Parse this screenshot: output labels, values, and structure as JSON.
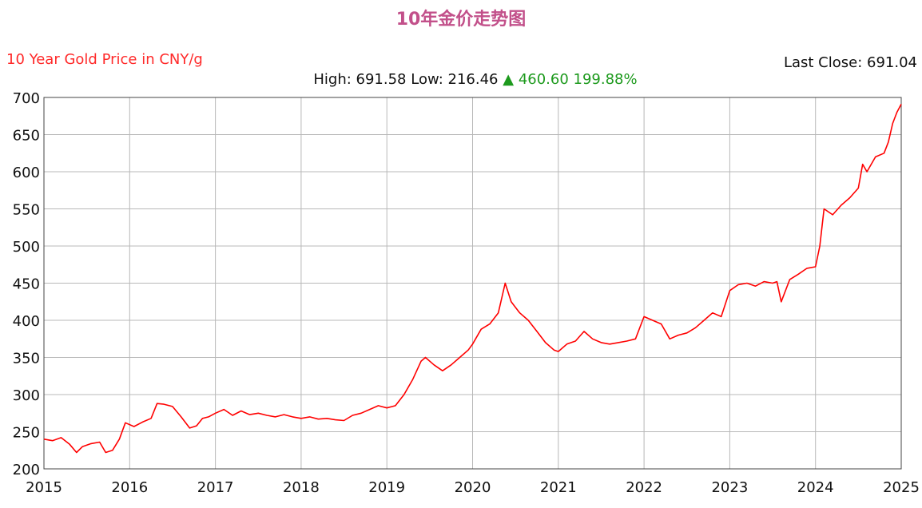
{
  "header": {
    "title": "10年金价走势图",
    "subtitle": "10 Year Gold Price in CNY/g",
    "last_close_label": "Last Close:",
    "last_close_value": "691.04",
    "high_label": "High:",
    "high_value": "691.58",
    "low_label": "Low:",
    "low_value": "216.46",
    "change_arrow": "▲",
    "change_abs": "460.60",
    "change_pct": "199.88%"
  },
  "chart_data": {
    "type": "line",
    "title": "10年金价走势图",
    "subtitle": "10 Year Gold Price in CNY/g",
    "xlabel": "",
    "ylabel": "",
    "xlim": [
      2015,
      2025
    ],
    "ylim": [
      200,
      700
    ],
    "x_ticks": [
      "2015",
      "2016",
      "2017",
      "2018",
      "2019",
      "2020",
      "2021",
      "2022",
      "2023",
      "2024",
      "2025"
    ],
    "y_ticks": [
      "200",
      "250",
      "300",
      "350",
      "400",
      "450",
      "500",
      "550",
      "600",
      "650",
      "700"
    ],
    "grid": true,
    "series": [
      {
        "color": "#ff0000",
        "x": [
          2015.0,
          2015.1,
          2015.2,
          2015.3,
          2015.38,
          2015.45,
          2015.55,
          2015.65,
          2015.72,
          2015.8,
          2015.88,
          2015.95,
          2016.05,
          2016.15,
          2016.25,
          2016.32,
          2016.4,
          2016.5,
          2016.6,
          2016.7,
          2016.78,
          2016.85,
          2016.92,
          2017.0,
          2017.1,
          2017.2,
          2017.3,
          2017.4,
          2017.5,
          2017.6,
          2017.7,
          2017.8,
          2017.9,
          2018.0,
          2018.1,
          2018.2,
          2018.3,
          2018.4,
          2018.5,
          2018.6,
          2018.7,
          2018.8,
          2018.9,
          2019.0,
          2019.1,
          2019.2,
          2019.3,
          2019.4,
          2019.45,
          2019.55,
          2019.65,
          2019.75,
          2019.85,
          2019.95,
          2020.0,
          2020.1,
          2020.2,
          2020.3,
          2020.38,
          2020.45,
          2020.55,
          2020.65,
          2020.75,
          2020.85,
          2020.95,
          2021.0,
          2021.1,
          2021.2,
          2021.3,
          2021.4,
          2021.5,
          2021.6,
          2021.7,
          2021.8,
          2021.9,
          2022.0,
          2022.1,
          2022.2,
          2022.3,
          2022.4,
          2022.5,
          2022.6,
          2022.7,
          2022.8,
          2022.9,
          2023.0,
          2023.1,
          2023.2,
          2023.3,
          2023.4,
          2023.5,
          2023.55,
          2023.6,
          2023.7,
          2023.8,
          2023.9,
          2024.0,
          2024.05,
          2024.1,
          2024.2,
          2024.3,
          2024.4,
          2024.5,
          2024.55,
          2024.6,
          2024.7,
          2024.8,
          2024.85,
          2024.9,
          2024.95,
          2025.0
        ],
        "y": [
          240,
          238,
          242,
          233,
          222,
          230,
          234,
          236,
          222,
          225,
          240,
          262,
          257,
          263,
          268,
          288,
          287,
          284,
          270,
          255,
          258,
          268,
          270,
          275,
          280,
          272,
          278,
          273,
          275,
          272,
          270,
          273,
          270,
          268,
          270,
          267,
          268,
          266,
          265,
          272,
          275,
          280,
          285,
          282,
          285,
          300,
          320,
          345,
          350,
          340,
          332,
          340,
          350,
          360,
          368,
          388,
          395,
          410,
          450,
          425,
          410,
          400,
          385,
          370,
          360,
          358,
          368,
          372,
          385,
          375,
          370,
          368,
          370,
          372,
          375,
          405,
          400,
          395,
          375,
          380,
          383,
          390,
          400,
          410,
          405,
          440,
          448,
          450,
          446,
          452,
          450,
          452,
          425,
          455,
          462,
          470,
          472,
          500,
          550,
          542,
          555,
          565,
          578,
          610,
          600,
          620,
          625,
          640,
          665,
          680,
          691
        ]
      }
    ]
  }
}
